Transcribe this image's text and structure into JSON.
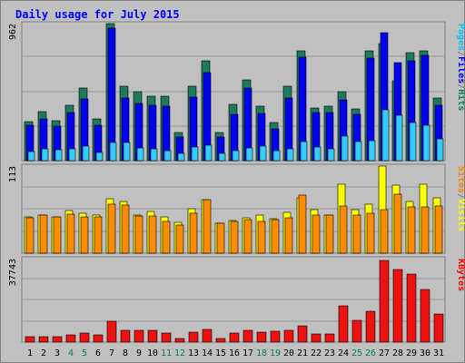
{
  "chart_data": {
    "type": "bar",
    "title": "Daily usage for July 2015",
    "categories": [
      "1",
      "2",
      "3",
      "4",
      "5",
      "6",
      "7",
      "8",
      "9",
      "10",
      "11",
      "12",
      "13",
      "14",
      "15",
      "16",
      "17",
      "18",
      "19",
      "20",
      "21",
      "22",
      "23",
      "24",
      "25",
      "26",
      "27",
      "28",
      "29",
      "30",
      "31"
    ],
    "weekend_days": [
      "4",
      "5",
      "11",
      "12",
      "18",
      "19",
      "25",
      "26"
    ],
    "panels": [
      {
        "name": "hits-files-pages",
        "axis_label": "962",
        "ylim": [
          0,
          962
        ],
        "right_labels": [
          {
            "text": "Pages",
            "color": "#00C0FF"
          },
          {
            "text": "/",
            "color": "#808080"
          },
          {
            "text": "Files",
            "color": "#0000FF"
          },
          {
            "text": "/",
            "color": "#808080"
          },
          {
            "text": "Hits",
            "color": "#008060"
          }
        ],
        "series": [
          {
            "name": "Hits",
            "color": "#1E7A5C",
            "values": [
              275,
              345,
              280,
              390,
              510,
              290,
              962,
              520,
              485,
              455,
              455,
              200,
              520,
              700,
              200,
              395,
              565,
              385,
              270,
              520,
              770,
              370,
              380,
              485,
              365,
              770,
              820,
              560,
              760,
              770,
              440
            ]
          },
          {
            "name": "Files",
            "color": "#0000F0",
            "values": [
              250,
              295,
              245,
              335,
              435,
              250,
              930,
              440,
              400,
              390,
              380,
              165,
              445,
              620,
              165,
              325,
              510,
              330,
              225,
              440,
              725,
              335,
              340,
              425,
              325,
              720,
              900,
              690,
              700,
              740,
              390
            ]
          },
          {
            "name": "Pages",
            "color": "#33CCFF",
            "values": [
              65,
              80,
              75,
              85,
              105,
              60,
              125,
              125,
              90,
              85,
              70,
              50,
              95,
              110,
              50,
              70,
              90,
              105,
              70,
              80,
              135,
              95,
              85,
              175,
              135,
              140,
              355,
              320,
              270,
              250,
              150
            ]
          }
        ]
      },
      {
        "name": "visits-sites",
        "axis_label": "113",
        "ylim": [
          0,
          113
        ],
        "right_labels": [
          {
            "text": "Sites",
            "color": "#FF8000"
          },
          {
            "text": "/",
            "color": "#808080"
          },
          {
            "text": "Visits",
            "color": "#FFFF00"
          }
        ],
        "series": [
          {
            "name": "Visits",
            "color": "#FFFF00",
            "values": [
              47,
              50,
              47,
              55,
              52,
              50,
              71,
              67,
              49,
              54,
              47,
              40,
              58,
              69,
              39,
              42,
              46,
              50,
              45,
              53,
              72,
              56,
              49,
              89,
              57,
              63,
              113,
              88,
              67,
              89,
              72
            ]
          },
          {
            "name": "Sites",
            "color": "#FF8C00",
            "values": [
              46,
              49,
              47,
              51,
              47,
              47,
              64,
              62,
              48,
              48,
              41,
              37,
              52,
              69,
              39,
              41,
              44,
              41,
              43,
              46,
              75,
              50,
              49,
              61,
              49,
              52,
              56,
              77,
              60,
              60,
              61
            ]
          }
        ]
      },
      {
        "name": "kbytes",
        "axis_label": "37743",
        "ylim": [
          0,
          37743
        ],
        "right_labels": [
          {
            "text": "KBytes",
            "color": "#FF0000"
          }
        ],
        "series": [
          {
            "name": "KBytes",
            "color": "#EE1111",
            "values": [
              2600,
              2600,
              2600,
              3100,
              4100,
              3200,
              9400,
              5200,
              5200,
              5300,
              4100,
              1800,
              4700,
              5600,
              1600,
              4100,
              5400,
              4600,
              4800,
              5500,
              7200,
              3700,
              3800,
              16500,
              9900,
              13800,
              36900,
              33000,
              30800,
              23700,
              12700
            ]
          }
        ]
      }
    ]
  }
}
